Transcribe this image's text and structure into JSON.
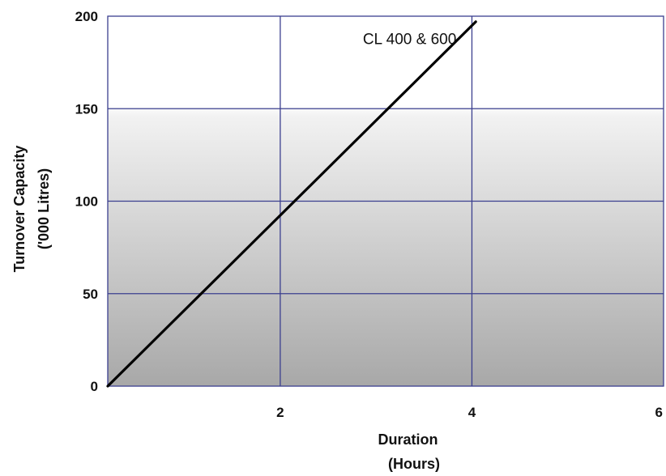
{
  "chart_data": {
    "type": "line",
    "title": "",
    "xlabel": [
      "Duration",
      "(Hours)"
    ],
    "ylabel": [
      "Turnover Capacity",
      "('000 Litres)"
    ],
    "xlim": [
      0.2,
      6
    ],
    "ylim": [
      0,
      200
    ],
    "x_ticks": [
      2,
      4,
      6
    ],
    "y_ticks": [
      0,
      50,
      100,
      150,
      200
    ],
    "grid": true,
    "background": "gradient-white-to-gray",
    "series": [
      {
        "x": [
          0.2,
          4.04
        ],
        "y": [
          0,
          197
        ]
      }
    ],
    "annotations": [
      {
        "text": "CL 400 & 600",
        "x": 3.35,
        "y": 185
      }
    ]
  }
}
